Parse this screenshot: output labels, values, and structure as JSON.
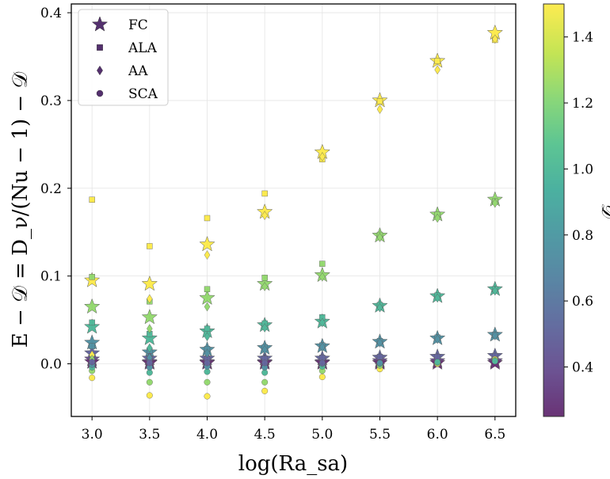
{
  "chart_data": {
    "type": "scatter",
    "xlabel": "log(Ra_sa)",
    "ylabel": "E − 𝒟 = D_ν/(Nu − 1) − 𝒟",
    "xlim": [
      2.82,
      6.68
    ],
    "ylim": [
      -0.06,
      0.41
    ],
    "xticks": [
      "3.0",
      "3.5",
      "4.0",
      "4.5",
      "5.0",
      "5.5",
      "6.0",
      "6.5"
    ],
    "yticks": [
      "0.0",
      "0.1",
      "0.2",
      "0.3",
      "0.4"
    ],
    "grid": true,
    "legend_position": "top-left",
    "legend": [
      {
        "label": "FC",
        "marker": "star"
      },
      {
        "label": "ALA",
        "marker": "square"
      },
      {
        "label": "AA",
        "marker": "diamond"
      },
      {
        "label": "SCA",
        "marker": "circle"
      }
    ],
    "colorbar": {
      "label": "𝒟",
      "range": [
        0.25,
        1.5
      ],
      "ticks": [
        "0.4",
        "0.6",
        "0.8",
        "1.0",
        "1.2",
        "1.4"
      ],
      "colormap": [
        "#440154",
        "#482878",
        "#3e4989",
        "#31688e",
        "#26828e",
        "#1f9e89",
        "#35b779",
        "#6ece58",
        "#b5de2b",
        "#fde725"
      ]
    },
    "series": [
      {
        "name": "FC",
        "marker": "star",
        "points": [
          [
            3.0,
            0.095,
            1.5
          ],
          [
            3.0,
            0.065,
            1.25
          ],
          [
            3.0,
            0.042,
            1.0
          ],
          [
            3.0,
            0.024,
            0.75
          ],
          [
            3.0,
            0.012,
            0.5
          ],
          [
            3.0,
            0.005,
            0.375
          ],
          [
            3.0,
            0.002,
            0.25
          ],
          [
            3.5,
            0.091,
            1.5
          ],
          [
            3.5,
            0.053,
            1.25
          ],
          [
            3.5,
            0.029,
            1.0
          ],
          [
            3.5,
            0.013,
            0.75
          ],
          [
            3.5,
            0.006,
            0.5
          ],
          [
            3.5,
            0.002,
            0.375
          ],
          [
            3.5,
            0.001,
            0.25
          ],
          [
            4.0,
            0.136,
            1.5
          ],
          [
            4.0,
            0.075,
            1.25
          ],
          [
            4.0,
            0.037,
            1.0
          ],
          [
            4.0,
            0.016,
            0.75
          ],
          [
            4.0,
            0.006,
            0.5
          ],
          [
            4.0,
            0.002,
            0.375
          ],
          [
            4.0,
            0.001,
            0.25
          ],
          [
            4.5,
            0.173,
            1.5
          ],
          [
            4.5,
            0.091,
            1.25
          ],
          [
            4.5,
            0.044,
            1.0
          ],
          [
            4.5,
            0.018,
            0.75
          ],
          [
            4.5,
            0.006,
            0.5
          ],
          [
            4.5,
            0.002,
            0.375
          ],
          [
            4.5,
            0.001,
            0.25
          ],
          [
            5.0,
            0.241,
            1.5
          ],
          [
            5.0,
            0.101,
            1.25
          ],
          [
            5.0,
            0.048,
            1.0
          ],
          [
            5.0,
            0.02,
            0.75
          ],
          [
            5.0,
            0.006,
            0.5
          ],
          [
            5.0,
            0.002,
            0.375
          ],
          [
            5.0,
            0.001,
            0.25
          ],
          [
            5.5,
            0.3,
            1.5
          ],
          [
            5.5,
            0.146,
            1.25
          ],
          [
            5.5,
            0.066,
            1.0
          ],
          [
            5.5,
            0.025,
            0.75
          ],
          [
            5.5,
            0.007,
            0.5
          ],
          [
            5.5,
            0.003,
            0.375
          ],
          [
            5.5,
            0.001,
            0.25
          ],
          [
            6.0,
            0.345,
            1.5
          ],
          [
            6.0,
            0.17,
            1.25
          ],
          [
            6.0,
            0.077,
            1.0
          ],
          [
            6.0,
            0.029,
            0.75
          ],
          [
            6.0,
            0.008,
            0.5
          ],
          [
            6.0,
            0.003,
            0.375
          ],
          [
            6.0,
            0.001,
            0.25
          ],
          [
            6.5,
            0.377,
            1.5
          ],
          [
            6.5,
            0.187,
            1.25
          ],
          [
            6.5,
            0.085,
            1.0
          ],
          [
            6.5,
            0.033,
            0.75
          ],
          [
            6.5,
            0.009,
            0.5
          ],
          [
            6.5,
            0.003,
            0.375
          ],
          [
            6.5,
            0.001,
            0.25
          ]
        ]
      },
      {
        "name": "ALA",
        "marker": "square",
        "points": [
          [
            3.0,
            0.187,
            1.5
          ],
          [
            3.0,
            0.099,
            1.25
          ],
          [
            3.0,
            0.047,
            1.0
          ],
          [
            3.0,
            0.02,
            0.75
          ],
          [
            3.0,
            0.007,
            0.5
          ],
          [
            3.5,
            0.134,
            1.5
          ],
          [
            3.5,
            0.071,
            1.25
          ],
          [
            3.5,
            0.034,
            1.0
          ],
          [
            3.5,
            0.015,
            0.75
          ],
          [
            3.5,
            0.005,
            0.5
          ],
          [
            4.0,
            0.166,
            1.5
          ],
          [
            4.0,
            0.085,
            1.25
          ],
          [
            4.0,
            0.04,
            1.0
          ],
          [
            4.0,
            0.017,
            0.75
          ],
          [
            4.0,
            0.006,
            0.5
          ],
          [
            4.5,
            0.194,
            1.5
          ],
          [
            4.5,
            0.098,
            1.25
          ],
          [
            4.5,
            0.046,
            1.0
          ],
          [
            4.5,
            0.019,
            0.75
          ],
          [
            4.5,
            0.006,
            0.5
          ],
          [
            5.0,
            0.233,
            1.5
          ],
          [
            5.0,
            0.114,
            1.25
          ],
          [
            5.0,
            0.053,
            1.0
          ],
          [
            5.0,
            0.021,
            0.75
          ],
          [
            5.0,
            0.007,
            0.5
          ],
          [
            5.5,
            0.299,
            1.5
          ],
          [
            5.5,
            0.147,
            1.25
          ],
          [
            5.5,
            0.067,
            1.0
          ],
          [
            5.5,
            0.026,
            0.75
          ],
          [
            5.5,
            0.008,
            0.5
          ],
          [
            6.0,
            0.345,
            1.5
          ],
          [
            6.0,
            0.17,
            1.25
          ],
          [
            6.0,
            0.078,
            1.0
          ],
          [
            6.0,
            0.03,
            0.75
          ],
          [
            6.0,
            0.008,
            0.5
          ],
          [
            6.5,
            0.369,
            1.5
          ],
          [
            6.5,
            0.185,
            1.25
          ],
          [
            6.5,
            0.085,
            1.0
          ],
          [
            6.5,
            0.033,
            0.75
          ],
          [
            6.5,
            0.009,
            0.5
          ]
        ]
      },
      {
        "name": "AA",
        "marker": "diamond",
        "points": [
          [
            3.0,
            0.01,
            1.5
          ],
          [
            3.0,
            0.005,
            1.25
          ],
          [
            3.0,
            0.001,
            1.0
          ],
          [
            3.0,
            0.0,
            0.75
          ],
          [
            3.5,
            0.074,
            1.5
          ],
          [
            3.5,
            0.04,
            1.25
          ],
          [
            3.5,
            0.018,
            1.0
          ],
          [
            3.5,
            0.007,
            0.75
          ],
          [
            4.0,
            0.124,
            1.5
          ],
          [
            4.0,
            0.065,
            1.25
          ],
          [
            4.0,
            0.031,
            1.0
          ],
          [
            4.0,
            0.012,
            0.75
          ],
          [
            4.5,
            0.169,
            1.5
          ],
          [
            4.5,
            0.088,
            1.25
          ],
          [
            4.5,
            0.041,
            1.0
          ],
          [
            4.5,
            0.016,
            0.75
          ],
          [
            5.0,
            0.236,
            1.5
          ],
          [
            5.0,
            0.099,
            1.25
          ],
          [
            5.0,
            0.047,
            1.0
          ],
          [
            5.0,
            0.019,
            0.75
          ],
          [
            5.5,
            0.29,
            1.5
          ],
          [
            5.5,
            0.144,
            1.25
          ],
          [
            5.5,
            0.064,
            1.0
          ],
          [
            5.5,
            0.024,
            0.75
          ],
          [
            6.0,
            0.335,
            1.5
          ],
          [
            6.0,
            0.166,
            1.25
          ],
          [
            6.0,
            0.075,
            1.0
          ],
          [
            6.0,
            0.028,
            0.75
          ],
          [
            6.5,
            0.37,
            1.5
          ],
          [
            6.5,
            0.183,
            1.25
          ],
          [
            6.5,
            0.083,
            1.0
          ],
          [
            6.5,
            0.032,
            0.75
          ]
        ]
      },
      {
        "name": "SCA",
        "marker": "circle",
        "points": [
          [
            3.0,
            -0.016,
            1.5
          ],
          [
            3.0,
            -0.008,
            1.25
          ],
          [
            3.0,
            -0.004,
            1.0
          ],
          [
            3.0,
            -0.001,
            0.75
          ],
          [
            3.0,
            0.002,
            0.5
          ],
          [
            3.5,
            -0.036,
            1.5
          ],
          [
            3.5,
            -0.021,
            1.25
          ],
          [
            3.5,
            -0.01,
            1.0
          ],
          [
            3.5,
            -0.004,
            0.75
          ],
          [
            3.5,
            0.001,
            0.5
          ],
          [
            4.0,
            -0.037,
            1.5
          ],
          [
            4.0,
            -0.021,
            1.25
          ],
          [
            4.0,
            -0.009,
            1.0
          ],
          [
            4.0,
            -0.003,
            0.75
          ],
          [
            4.0,
            0.001,
            0.5
          ],
          [
            4.5,
            -0.031,
            1.5
          ],
          [
            4.5,
            -0.021,
            1.25
          ],
          [
            4.5,
            -0.01,
            1.0
          ],
          [
            4.5,
            -0.004,
            0.75
          ],
          [
            4.5,
            0.001,
            0.5
          ],
          [
            5.0,
            -0.015,
            1.5
          ],
          [
            5.0,
            -0.008,
            1.25
          ],
          [
            5.0,
            -0.003,
            1.0
          ],
          [
            5.0,
            0.0,
            0.75
          ],
          [
            5.0,
            0.001,
            0.5
          ],
          [
            5.5,
            -0.006,
            1.5
          ],
          [
            5.5,
            -0.002,
            1.25
          ],
          [
            5.5,
            0.0,
            1.0
          ],
          [
            5.5,
            0.001,
            0.75
          ],
          [
            6.0,
            0.0,
            1.5
          ],
          [
            6.0,
            0.001,
            1.25
          ],
          [
            6.0,
            0.002,
            1.0
          ],
          [
            6.5,
            0.005,
            1.5
          ],
          [
            6.5,
            0.004,
            1.25
          ],
          [
            6.5,
            0.003,
            1.0
          ]
        ]
      }
    ]
  }
}
